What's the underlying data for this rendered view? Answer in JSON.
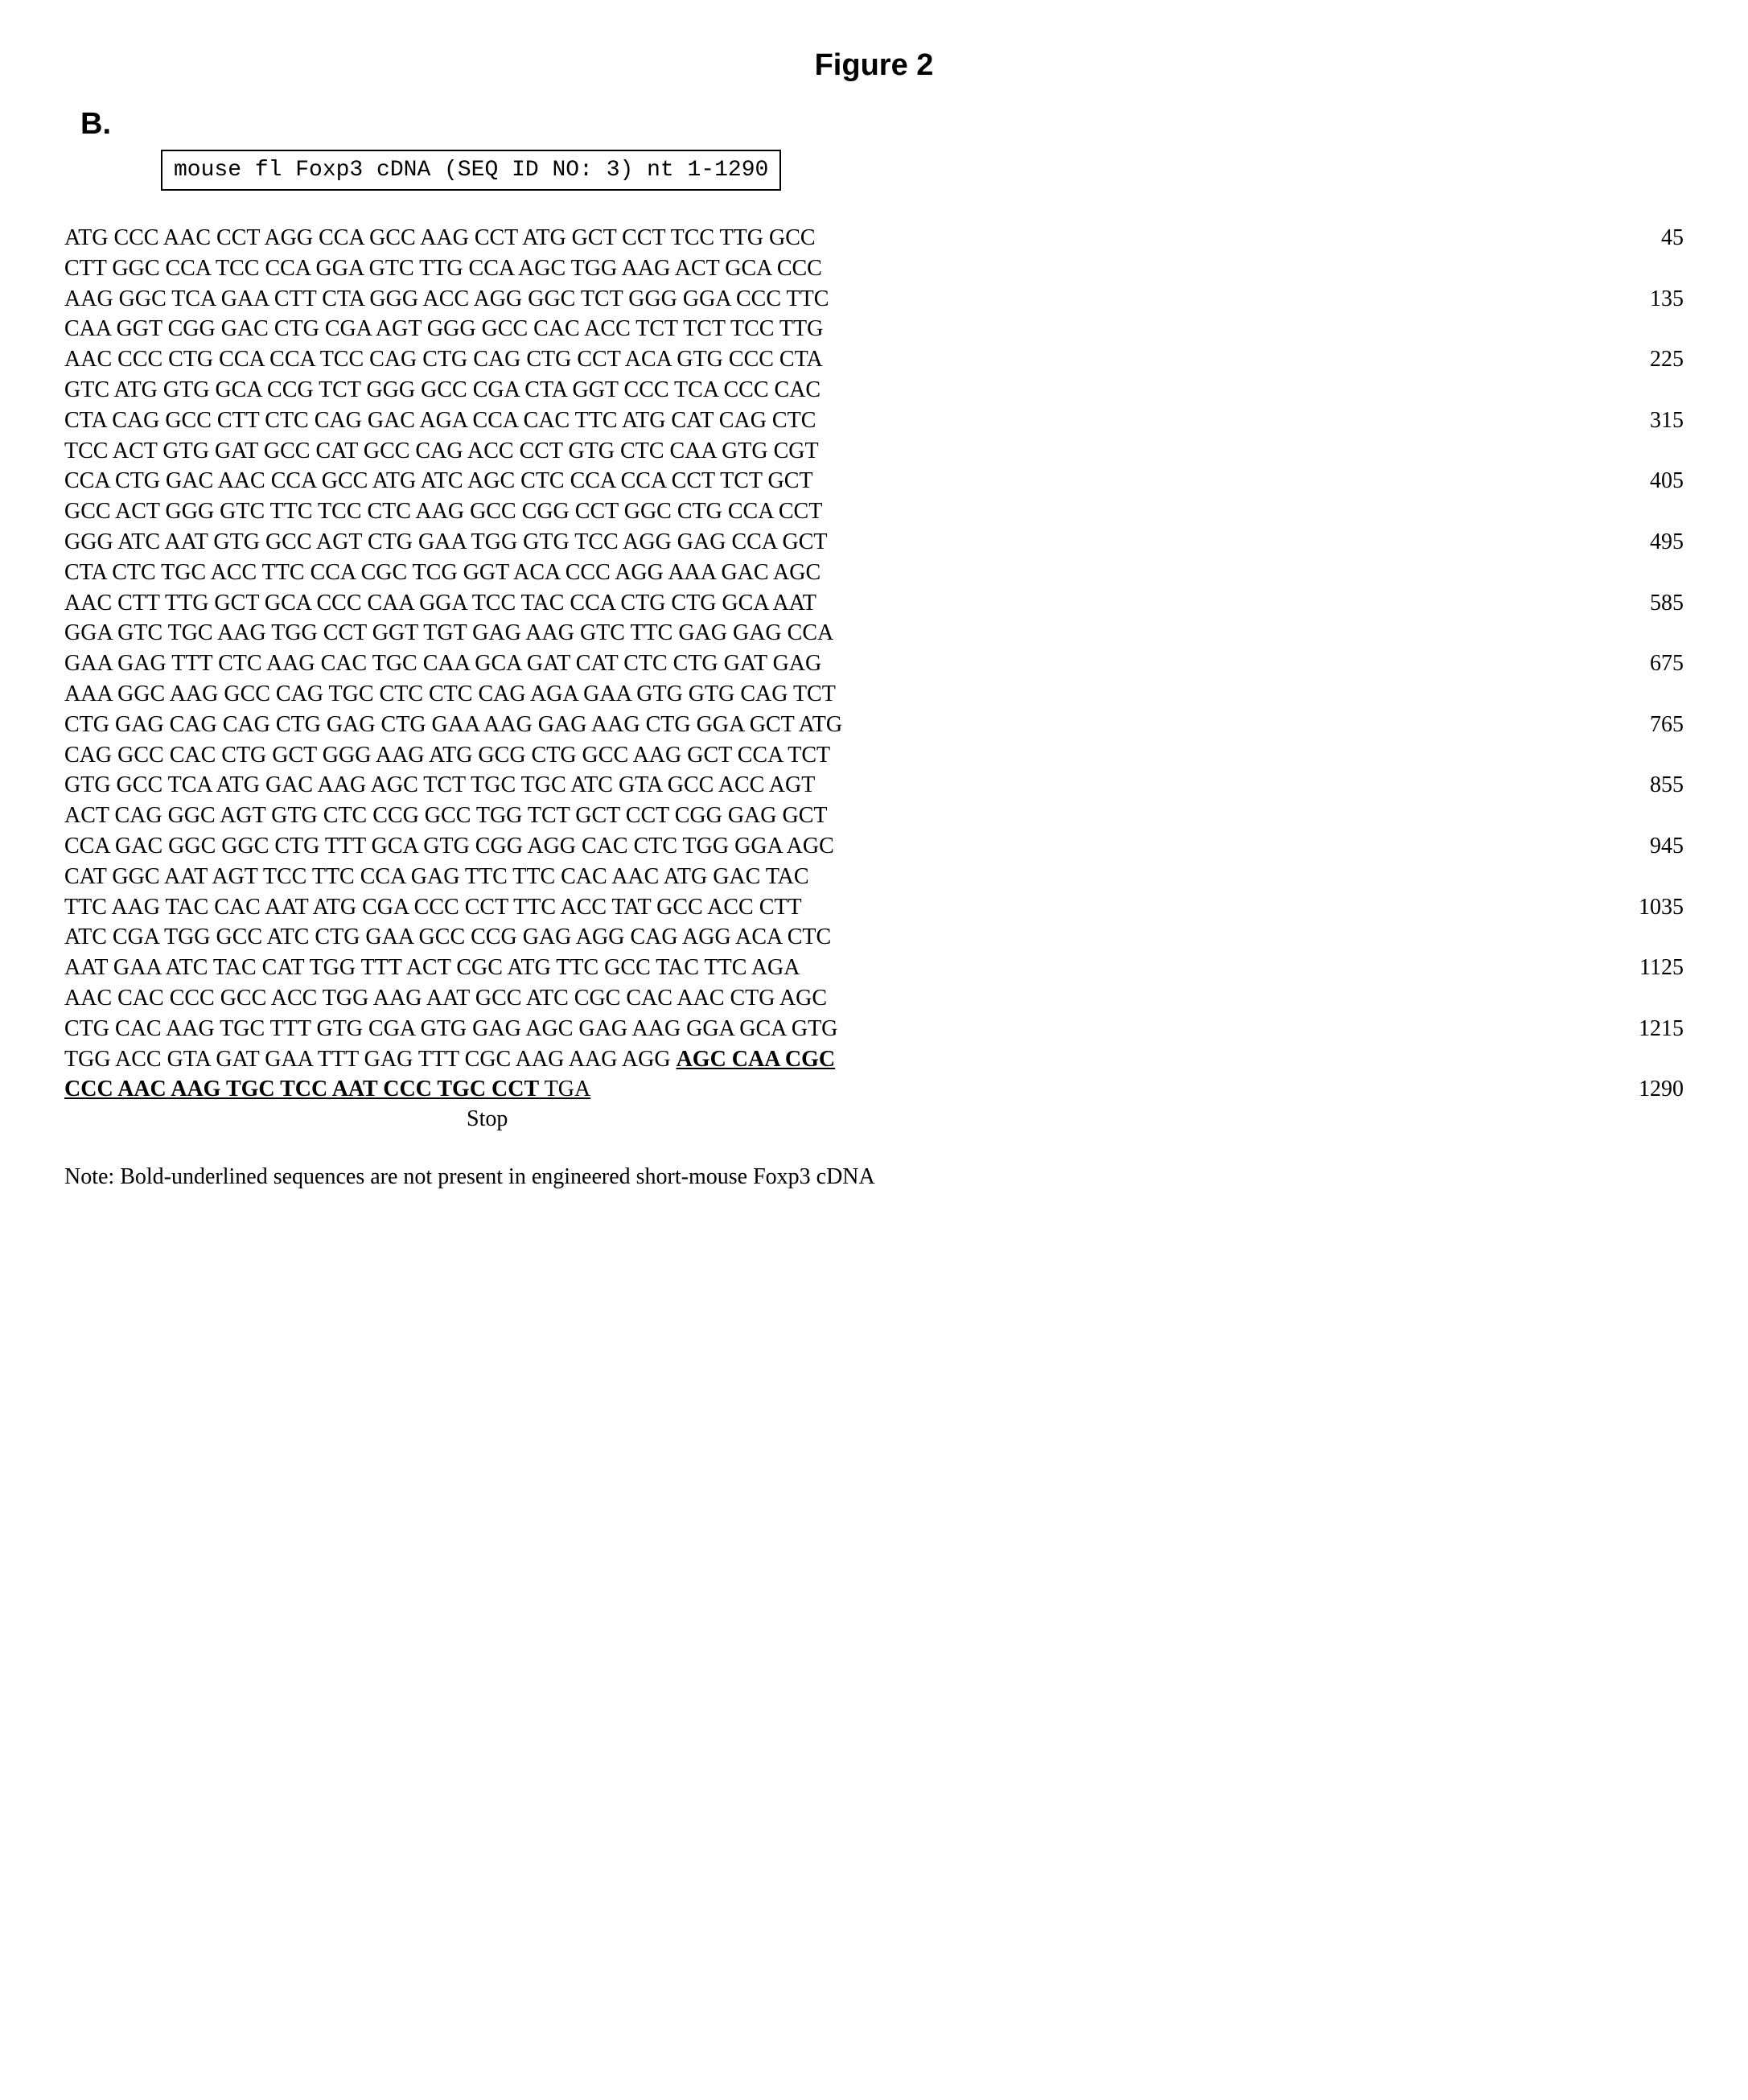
{
  "figure": {
    "title": "Figure 2",
    "panel_label": "B.",
    "header_box": "mouse fl Foxp3 cDNA (SEQ ID NO: 3) nt 1-1290"
  },
  "sequence": {
    "rows": [
      {
        "text": "ATG CCC AAC CCT AGG CCA GCC AAG CCT ATG GCT CCT TCC TTG GCC",
        "num": "45"
      },
      {
        "text": "CTT GGC CCA TCC CCA GGA GTC TTG CCA AGC TGG AAG ACT GCA CCC",
        "num": ""
      },
      {
        "text": "AAG GGC TCA GAA CTT CTA GGG ACC AGG GGC TCT GGG GGA CCC TTC",
        "num": "135"
      },
      {
        "text": "CAA GGT CGG GAC CTG CGA AGT GGG GCC CAC ACC TCT TCT TCC TTG",
        "num": ""
      },
      {
        "text": "AAC CCC CTG CCA CCA TCC CAG CTG CAG CTG CCT ACA GTG CCC CTA",
        "num": "225"
      },
      {
        "text": "GTC ATG GTG GCA CCG TCT GGG GCC CGA CTA GGT CCC TCA CCC CAC",
        "num": ""
      },
      {
        "text": "CTA CAG GCC CTT CTC CAG GAC AGA CCA CAC TTC ATG CAT CAG CTC",
        "num": "315"
      },
      {
        "text": "TCC ACT GTG GAT GCC CAT GCC CAG ACC CCT GTG CTC CAA GTG CGT",
        "num": ""
      },
      {
        "text": "CCA CTG GAC AAC CCA GCC ATG ATC AGC CTC CCA CCA CCT TCT GCT",
        "num": "405"
      },
      {
        "text": "GCC ACT GGG GTC TTC TCC CTC AAG GCC CGG CCT GGC CTG CCA CCT",
        "num": ""
      },
      {
        "text": "GGG ATC AAT GTG GCC AGT CTG GAA TGG GTG TCC AGG GAG CCA GCT",
        "num": "495"
      },
      {
        "text": "CTA CTC TGC ACC TTC CCA CGC TCG GGT ACA CCC AGG AAA GAC AGC",
        "num": ""
      },
      {
        "text": "AAC CTT TTG GCT GCA CCC CAA GGA TCC TAC CCA CTG CTG GCA AAT",
        "num": "585"
      },
      {
        "text": "GGA GTC TGC AAG TGG CCT GGT TGT GAG AAG GTC TTC GAG GAG CCA",
        "num": ""
      },
      {
        "text": "GAA GAG TTT CTC AAG CAC TGC CAA GCA GAT CAT CTC CTG GAT GAG",
        "num": "675"
      },
      {
        "text": "AAA GGC AAG GCC CAG TGC CTC CTC CAG AGA GAA GTG GTG CAG TCT",
        "num": ""
      },
      {
        "text": "CTG GAG CAG CAG CTG GAG CTG GAA AAG GAG AAG CTG GGA GCT ATG",
        "num": "765"
      },
      {
        "text": "CAG GCC CAC CTG GCT GGG AAG ATG GCG CTG GCC AAG GCT CCA TCT",
        "num": ""
      },
      {
        "text": "GTG GCC TCA ATG GAC AAG AGC TCT TGC TGC ATC GTA GCC ACC AGT",
        "num": "855"
      },
      {
        "text": "ACT CAG GGC AGT GTG CTC CCG GCC TGG TCT GCT CCT CGG GAG GCT",
        "num": ""
      },
      {
        "text": "CCA GAC GGC GGC CTG TTT GCA GTG CGG AGG CAC CTC TGG GGA AGC",
        "num": "945"
      },
      {
        "text": "CAT GGC AAT AGT TCC TTC CCA GAG TTC TTC CAC AAC ATG GAC TAC",
        "num": ""
      },
      {
        "text": "TTC AAG TAC CAC AAT ATG CGA CCC CCT TTC ACC TAT GCC ACC CTT",
        "num": "1035"
      },
      {
        "text": "ATC CGA TGG GCC ATC CTG GAA GCC CCG GAG AGG CAG AGG ACA CTC",
        "num": ""
      },
      {
        "text": "AAT GAA ATC TAC CAT TGG TTT ACT CGC ATG TTC GCC TAC TTC AGA",
        "num": "1125"
      },
      {
        "text": "AAC CAC CCC GCC ACC TGG AAG AAT GCC ATC CGC CAC AAC CTG AGC",
        "num": ""
      },
      {
        "text": "CTG CAC AAG TGC TTT GTG CGA GTG GAG AGC GAG AAG GGA GCA GTG",
        "num": "1215"
      }
    ],
    "last_row_prefix": "TGG ACC GTA GAT GAA TTT GAG TTT CGC AAG AAG AGG ",
    "last_row_bold_a": "AGC CAA CGC",
    "bold_row": "CCC AAC AAG TGC TCC AAT CCC TGC CCT",
    "stop_codon": " TGA",
    "last_num": "1290",
    "stop_label": "Stop"
  },
  "note": "Note: Bold-underlined sequences are not present in engineered short-mouse Foxp3 cDNA",
  "styling": {
    "background_color": "#ffffff",
    "text_color": "#000000",
    "title_font": "Arial",
    "title_fontsize": 38,
    "title_fontweight": "bold",
    "panel_fontsize": 38,
    "body_font": "Times New Roman",
    "body_fontsize": 28,
    "mono_font": "Courier New",
    "mono_fontsize": 28,
    "line_height": 1.35,
    "border_color": "#000000",
    "border_width": 2
  }
}
